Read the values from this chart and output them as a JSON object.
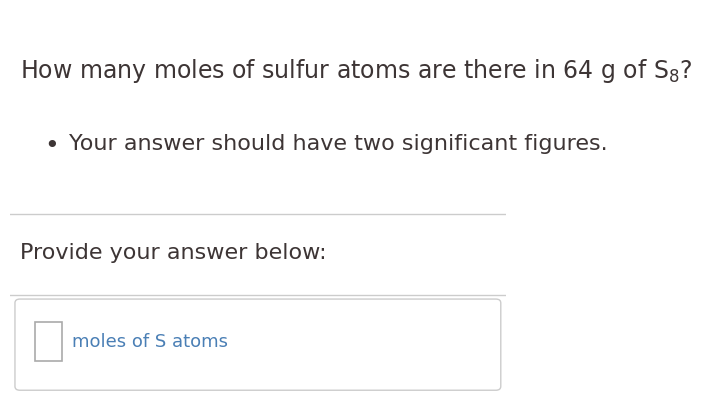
{
  "background_color": "#ffffff",
  "title_text": "How many moles of sulfur atoms are there in 64 g of $\\mathregular{S_8}$?",
  "bullet_text": "Your answer should have two significant figures.",
  "provide_text": "Provide your answer below:",
  "input_label": "moles of S atoms",
  "text_color": "#3d3535",
  "label_color": "#4a7fb5",
  "line_color": "#cccccc",
  "title_fontsize": 17,
  "body_fontsize": 16,
  "label_fontsize": 13
}
